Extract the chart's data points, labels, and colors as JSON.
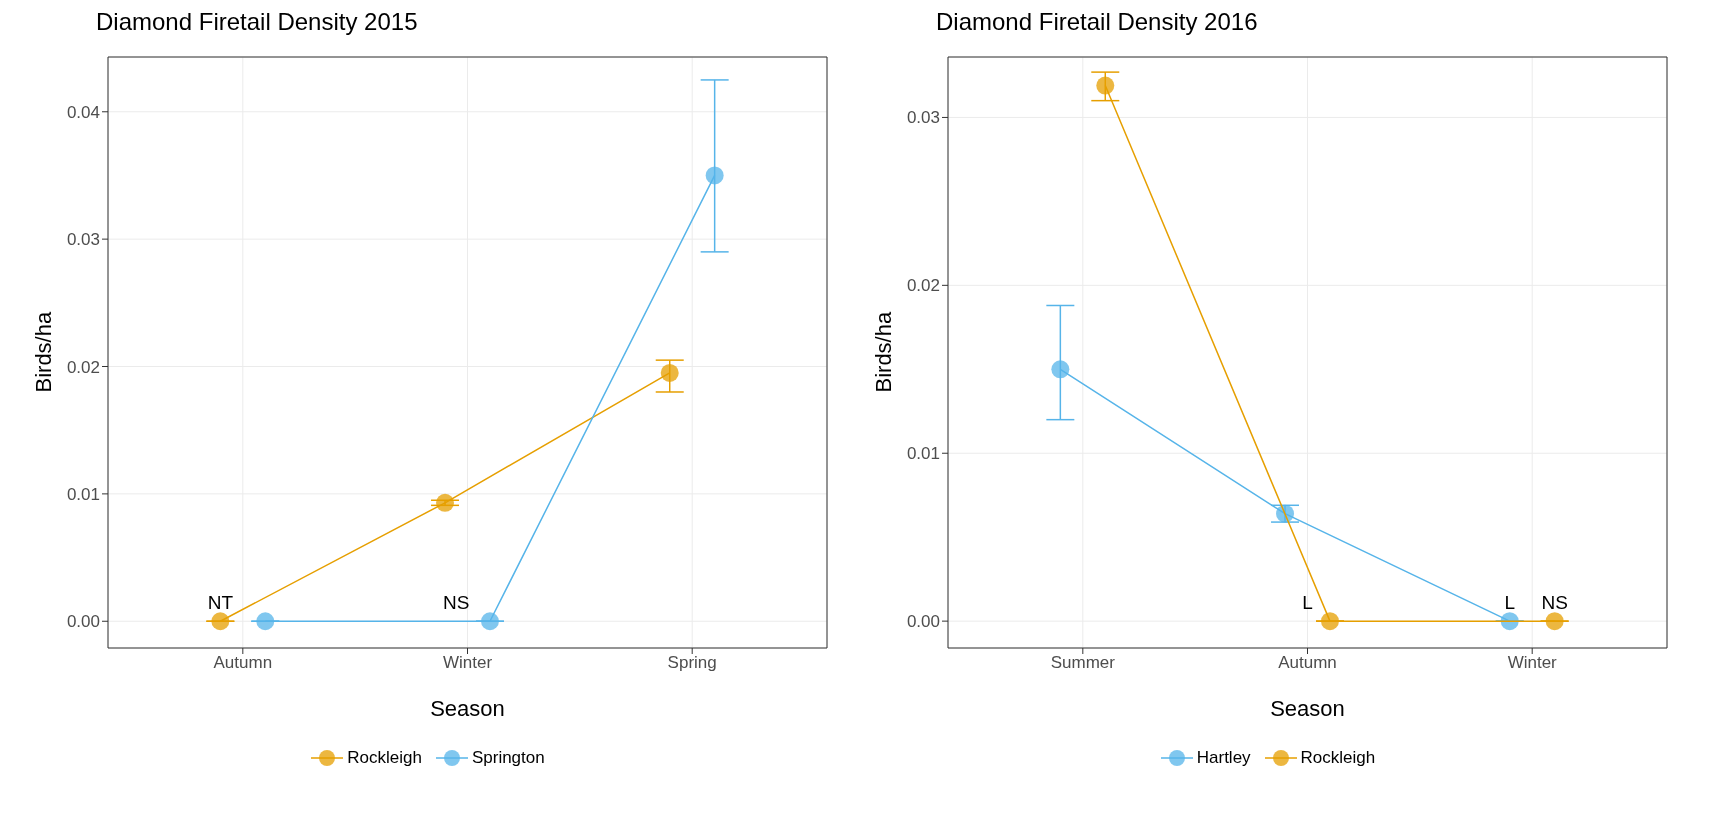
{
  "chart_data": [
    {
      "type": "line",
      "title": "Diamond Firetail Density 2015",
      "xlabel": "Season",
      "ylabel": "Birds/ha",
      "categories": [
        "Autumn",
        "Winter",
        "Spring"
      ],
      "series": [
        {
          "name": "Rockleigh",
          "color": "#e69f00",
          "values": [
            0,
            0.0093,
            0.0195
          ],
          "errors": [
            null,
            [
              0.0091,
              0.0095
            ],
            [
              0.018,
              0.0205
            ]
          ]
        },
        {
          "name": "Springton",
          "color": "#56b4e9",
          "values": [
            0,
            0,
            0.035
          ],
          "errors": [
            null,
            null,
            [
              0.029,
              0.0425
            ]
          ]
        }
      ],
      "ylim": [
        -0.0021,
        0.0443
      ],
      "yticks": [
        {
          "value": 0,
          "label": "0.00"
        },
        {
          "value": 0.01,
          "label": "0.01"
        },
        {
          "value": 0.02,
          "label": "0.02"
        },
        {
          "value": 0.03,
          "label": "0.03"
        },
        {
          "value": 0.04,
          "label": "0.04"
        }
      ],
      "annotations": [
        "NT",
        "NS"
      ],
      "grid": true,
      "legend": "bottom",
      "marker": "circle"
    },
    {
      "type": "line",
      "title": "Diamond Firetail Density 2016",
      "xlabel": "Season",
      "ylabel": "Birds/ha",
      "categories": [
        "Summer",
        "Autumn",
        "Winter"
      ],
      "series": [
        {
          "name": "Hartley",
          "color": "#56b4e9",
          "values": [
            0.015,
            0.0064,
            0
          ],
          "errors": [
            [
              0.012,
              0.0188
            ],
            [
              0.0059,
              0.0069
            ],
            null
          ]
        },
        {
          "name": "Rockleigh",
          "color": "#e69f00",
          "values": [
            0.0319,
            0,
            0
          ],
          "errors": [
            [
              0.031,
              0.0327
            ],
            null,
            null
          ]
        }
      ],
      "ylim": [
        -0.0016,
        0.0336
      ],
      "yticks": [
        {
          "value": 0,
          "label": "0.00"
        },
        {
          "value": 0.01,
          "label": "0.01"
        },
        {
          "value": 0.02,
          "label": "0.02"
        },
        {
          "value": 0.03,
          "label": "0.03"
        }
      ],
      "annotations": [
        "L",
        "L",
        "NS"
      ],
      "grid": true,
      "legend": "bottom",
      "marker": "circle"
    }
  ]
}
